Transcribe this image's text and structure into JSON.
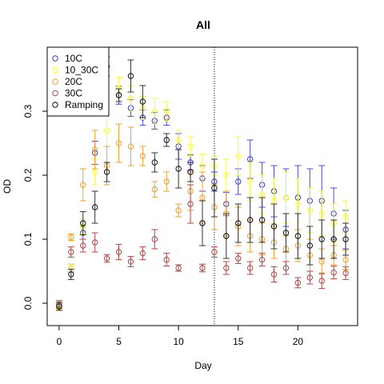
{
  "chart_data": {
    "type": "scatter",
    "title": "All",
    "xlabel": "Day",
    "ylabel": "OD",
    "xlim": [
      -1,
      25
    ],
    "ylim": [
      -0.035,
      0.4
    ],
    "xticks": [
      0,
      5,
      10,
      15,
      20
    ],
    "yticks": [
      0.0,
      0.1,
      0.2,
      0.3
    ],
    "xtick_labels": [
      "0",
      "5",
      "10",
      "15",
      "20"
    ],
    "ytick_labels": [
      "0.0",
      "0.1",
      "0.2",
      "0.3"
    ],
    "grid": false,
    "legend_position": "top-left",
    "vline_x": 13,
    "series": [
      {
        "name": "10C",
        "color": "#3a3ad8",
        "err_color": "#4a4ae0",
        "points": [
          {
            "x": 0,
            "y": -0.003,
            "err": 0.007
          },
          {
            "x": 1,
            "y": 0.055,
            "err": 0.006
          },
          {
            "x": 2,
            "y": 0.11,
            "err": 0.01
          },
          {
            "x": 3,
            "y": 0.235,
            "err": 0.018
          },
          {
            "x": 4,
            "y": 0.37,
            "err": 0.015
          },
          {
            "x": 5,
            "y": 0.325,
            "err": 0.014
          },
          {
            "x": 6,
            "y": 0.305,
            "err": 0.013
          },
          {
            "x": 7,
            "y": 0.29,
            "err": 0.012
          },
          {
            "x": 8,
            "y": 0.285,
            "err": 0.013
          },
          {
            "x": 9,
            "y": 0.29,
            "err": 0.012
          },
          {
            "x": 10,
            "y": 0.245,
            "err": 0.02
          },
          {
            "x": 11,
            "y": 0.22,
            "err": 0.012
          },
          {
            "x": 12,
            "y": 0.195,
            "err": 0.02
          },
          {
            "x": 13,
            "y": 0.19,
            "err": 0.015
          },
          {
            "x": 14,
            "y": 0.155,
            "err": 0.018
          },
          {
            "x": 15,
            "y": 0.19,
            "err": 0.02
          },
          {
            "x": 16,
            "y": 0.225,
            "err": 0.03
          },
          {
            "x": 17,
            "y": 0.185,
            "err": 0.035
          },
          {
            "x": 18,
            "y": 0.175,
            "err": 0.04
          },
          {
            "x": 19,
            "y": 0.165,
            "err": 0.045
          },
          {
            "x": 20,
            "y": 0.165,
            "err": 0.05
          },
          {
            "x": 21,
            "y": 0.16,
            "err": 0.05
          },
          {
            "x": 22,
            "y": 0.16,
            "err": 0.055
          },
          {
            "x": 23,
            "y": 0.14,
            "err": 0.04
          },
          {
            "x": 24,
            "y": 0.115,
            "err": 0.03
          }
        ]
      },
      {
        "name": "10_30C",
        "color": "#ffff22",
        "err_color": "#f7f740",
        "points": [
          {
            "x": 0,
            "y": -0.003,
            "err": 0.007
          },
          {
            "x": 1,
            "y": 0.055,
            "err": 0.006
          },
          {
            "x": 2,
            "y": 0.12,
            "err": 0.012
          },
          {
            "x": 3,
            "y": 0.205,
            "err": 0.02
          },
          {
            "x": 4,
            "y": 0.27,
            "err": 0.025
          },
          {
            "x": 5,
            "y": 0.335,
            "err": 0.018
          },
          {
            "x": 6,
            "y": 0.32,
            "err": 0.02
          },
          {
            "x": 7,
            "y": 0.305,
            "err": 0.018
          },
          {
            "x": 8,
            "y": 0.3,
            "err": 0.02
          },
          {
            "x": 9,
            "y": 0.3,
            "err": 0.015
          },
          {
            "x": 10,
            "y": 0.255,
            "err": 0.015
          },
          {
            "x": 11,
            "y": 0.245,
            "err": 0.015
          },
          {
            "x": 12,
            "y": 0.215,
            "err": 0.018
          },
          {
            "x": 13,
            "y": 0.215,
            "err": 0.015
          },
          {
            "x": 14,
            "y": 0.2,
            "err": 0.025
          },
          {
            "x": 15,
            "y": 0.23,
            "err": 0.03
          },
          {
            "x": 16,
            "y": 0.19,
            "err": 0.03
          },
          {
            "x": 17,
            "y": 0.17,
            "err": 0.03
          },
          {
            "x": 18,
            "y": 0.16,
            "err": 0.035
          },
          {
            "x": 19,
            "y": 0.165,
            "err": 0.04
          },
          {
            "x": 20,
            "y": 0.155,
            "err": 0.04
          },
          {
            "x": 21,
            "y": 0.145,
            "err": 0.035
          },
          {
            "x": 22,
            "y": 0.14,
            "err": 0.035
          },
          {
            "x": 23,
            "y": 0.125,
            "err": 0.03
          },
          {
            "x": 24,
            "y": 0.135,
            "err": 0.025
          }
        ]
      },
      {
        "name": "20C",
        "color": "#f0a030",
        "err_color": "#f0a030",
        "points": [
          {
            "x": 0,
            "y": -0.005,
            "err": 0.006
          },
          {
            "x": 1,
            "y": 0.103,
            "err": 0.005
          },
          {
            "x": 2,
            "y": 0.185,
            "err": 0.025
          },
          {
            "x": 3,
            "y": 0.24,
            "err": 0.03
          },
          {
            "x": 4,
            "y": 0.215,
            "err": 0.03
          },
          {
            "x": 5,
            "y": 0.25,
            "err": 0.03
          },
          {
            "x": 6,
            "y": 0.245,
            "err": 0.03
          },
          {
            "x": 7,
            "y": 0.23,
            "err": 0.015
          },
          {
            "x": 8,
            "y": 0.178,
            "err": 0.012
          },
          {
            "x": 9,
            "y": 0.19,
            "err": 0.015
          },
          {
            "x": 10,
            "y": 0.145,
            "err": 0.01
          },
          {
            "x": 11,
            "y": 0.175,
            "err": 0.03
          },
          {
            "x": 12,
            "y": 0.165,
            "err": 0.04
          },
          {
            "x": 13,
            "y": 0.15,
            "err": 0.035
          },
          {
            "x": 14,
            "y": 0.14,
            "err": 0.035
          },
          {
            "x": 15,
            "y": 0.12,
            "err": 0.03
          },
          {
            "x": 16,
            "y": 0.105,
            "err": 0.025
          },
          {
            "x": 17,
            "y": 0.1,
            "err": 0.025
          },
          {
            "x": 18,
            "y": 0.095,
            "err": 0.025
          },
          {
            "x": 19,
            "y": 0.085,
            "err": 0.02
          },
          {
            "x": 20,
            "y": 0.09,
            "err": 0.025
          },
          {
            "x": 21,
            "y": 0.075,
            "err": 0.025
          },
          {
            "x": 22,
            "y": 0.065,
            "err": 0.02
          },
          {
            "x": 23,
            "y": 0.075,
            "err": 0.015
          },
          {
            "x": 24,
            "y": 0.068,
            "err": 0.015
          }
        ]
      },
      {
        "name": "30C",
        "color": "#b04848",
        "err_color": "#b04848",
        "points": [
          {
            "x": 0,
            "y": -0.002,
            "err": 0.006
          },
          {
            "x": 1,
            "y": 0.08,
            "err": 0.008
          },
          {
            "x": 2,
            "y": 0.09,
            "err": 0.01
          },
          {
            "x": 3,
            "y": 0.095,
            "err": 0.015
          },
          {
            "x": 4,
            "y": 0.07,
            "err": 0.006
          },
          {
            "x": 5,
            "y": 0.08,
            "err": 0.012
          },
          {
            "x": 6,
            "y": 0.065,
            "err": 0.008
          },
          {
            "x": 7,
            "y": 0.078,
            "err": 0.01
          },
          {
            "x": 8,
            "y": 0.1,
            "err": 0.015
          },
          {
            "x": 9,
            "y": 0.068,
            "err": 0.01
          },
          {
            "x": 10,
            "y": 0.055,
            "err": 0.005
          },
          {
            "x": 11,
            "y": 0.155,
            "err": 0.03
          },
          {
            "x": 12,
            "y": 0.055,
            "err": 0.006
          },
          {
            "x": 13,
            "y": 0.08,
            "err": 0.008
          },
          {
            "x": 14,
            "y": 0.055,
            "err": 0.01
          },
          {
            "x": 15,
            "y": 0.07,
            "err": 0.008
          },
          {
            "x": 16,
            "y": 0.055,
            "err": 0.01
          },
          {
            "x": 17,
            "y": 0.068,
            "err": 0.01
          },
          {
            "x": 18,
            "y": 0.045,
            "err": 0.012
          },
          {
            "x": 19,
            "y": 0.055,
            "err": 0.01
          },
          {
            "x": 20,
            "y": 0.032,
            "err": 0.008
          },
          {
            "x": 21,
            "y": 0.04,
            "err": 0.01
          },
          {
            "x": 22,
            "y": 0.035,
            "err": 0.012
          },
          {
            "x": 23,
            "y": 0.048,
            "err": 0.01
          },
          {
            "x": 24,
            "y": 0.047,
            "err": 0.01
          }
        ]
      },
      {
        "name": "Ramping",
        "color": "#111111",
        "err_color": "#333333",
        "points": [
          {
            "x": 0,
            "y": -0.005,
            "err": 0.006
          },
          {
            "x": 1,
            "y": 0.045,
            "err": 0.008
          },
          {
            "x": 2,
            "y": 0.125,
            "err": 0.018
          },
          {
            "x": 3,
            "y": 0.15,
            "err": 0.025
          },
          {
            "x": 4,
            "y": 0.205,
            "err": 0.015
          },
          {
            "x": 5,
            "y": 0.325,
            "err": 0.01
          },
          {
            "x": 6,
            "y": 0.355,
            "err": 0.025
          },
          {
            "x": 7,
            "y": 0.315,
            "err": 0.025
          },
          {
            "x": 8,
            "y": 0.22,
            "err": 0.015
          },
          {
            "x": 9,
            "y": 0.255,
            "err": 0.01
          },
          {
            "x": 10,
            "y": 0.21,
            "err": 0.03
          },
          {
            "x": 11,
            "y": 0.205,
            "err": 0.015
          },
          {
            "x": 12,
            "y": 0.125,
            "err": 0.035
          },
          {
            "x": 13,
            "y": 0.18,
            "err": 0.045
          },
          {
            "x": 14,
            "y": 0.105,
            "err": 0.035
          },
          {
            "x": 15,
            "y": 0.125,
            "err": 0.03
          },
          {
            "x": 16,
            "y": 0.13,
            "err": 0.035
          },
          {
            "x": 17,
            "y": 0.13,
            "err": 0.035
          },
          {
            "x": 18,
            "y": 0.12,
            "err": 0.035
          },
          {
            "x": 19,
            "y": 0.11,
            "err": 0.03
          },
          {
            "x": 20,
            "y": 0.105,
            "err": 0.035
          },
          {
            "x": 21,
            "y": 0.09,
            "err": 0.03
          },
          {
            "x": 22,
            "y": 0.1,
            "err": 0.03
          },
          {
            "x": 23,
            "y": 0.1,
            "err": 0.03
          },
          {
            "x": 24,
            "y": 0.1,
            "err": 0.025
          }
        ]
      }
    ]
  }
}
